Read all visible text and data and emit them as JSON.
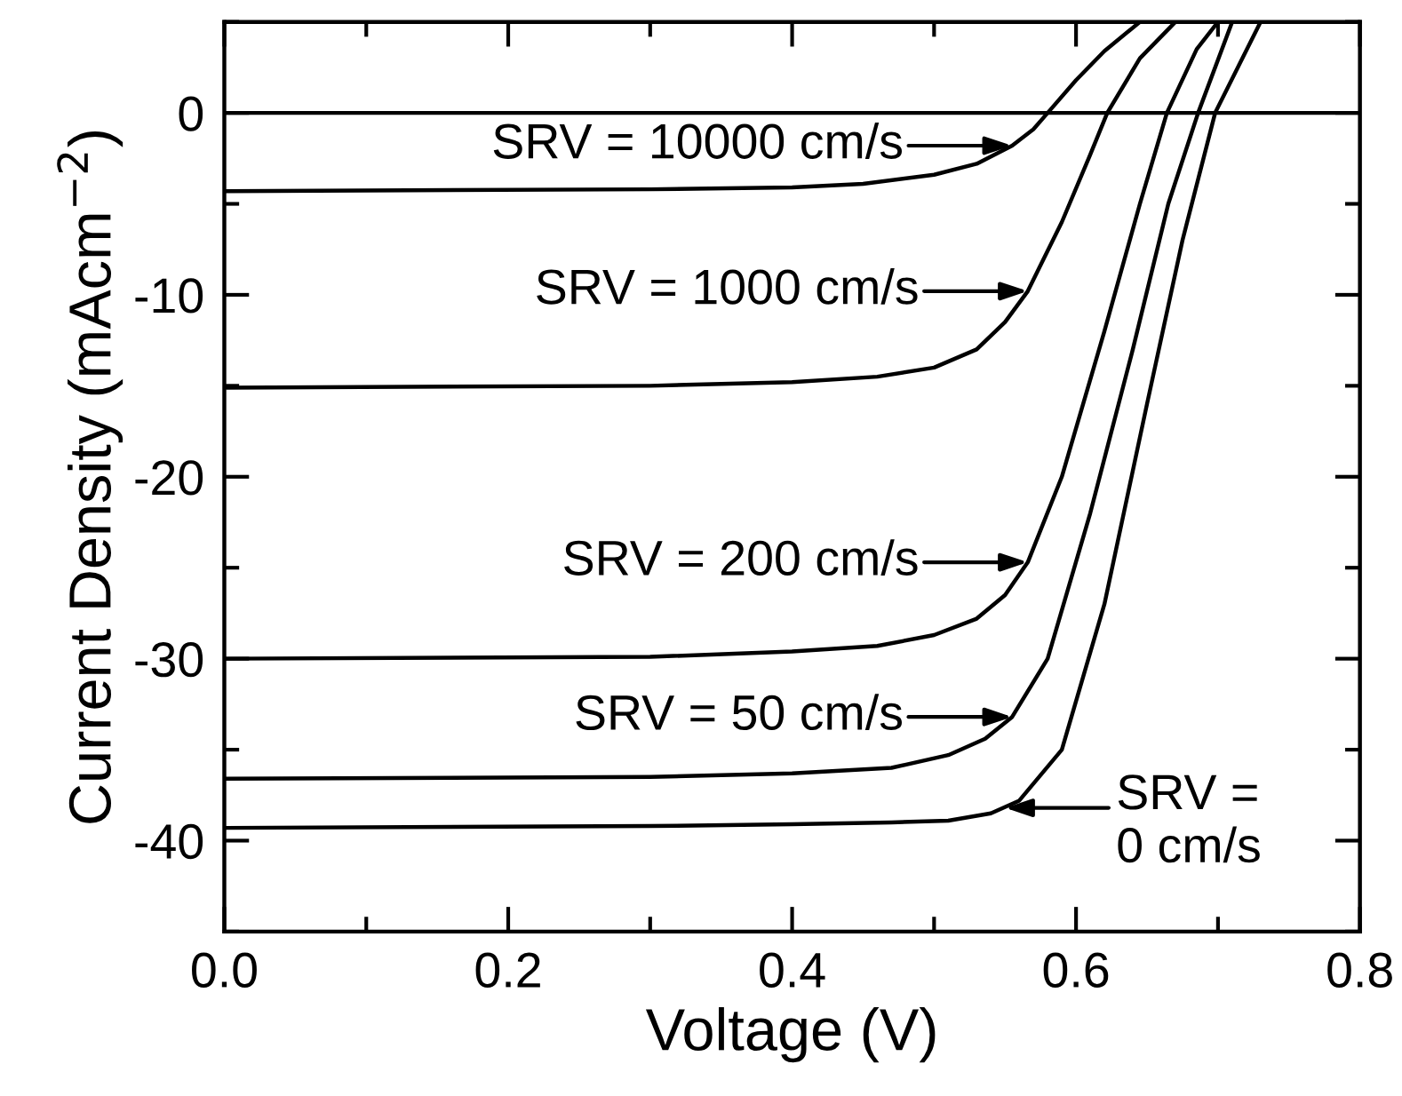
{
  "chart_data": {
    "type": "line",
    "xlabel": "Voltage (V)",
    "ylabel": "Current Density (mAcm$^{−2}$)",
    "xlim": [
      0,
      0.8
    ],
    "ylim": [
      -45,
      5
    ],
    "xticks": [
      {
        "value": 0.0,
        "label": "0.0"
      },
      {
        "value": 0.1,
        "label": null
      },
      {
        "value": 0.2,
        "label": "0.2"
      },
      {
        "value": 0.3,
        "label": null
      },
      {
        "value": 0.4,
        "label": "0.4"
      },
      {
        "value": 0.5,
        "label": null
      },
      {
        "value": 0.6,
        "label": "0.6"
      },
      {
        "value": 0.7,
        "label": null
      },
      {
        "value": 0.8,
        "label": "0.8"
      }
    ],
    "yticks": [
      {
        "value": -45,
        "label": null
      },
      -40,
      {
        "value": -35,
        "label": null
      },
      -30,
      {
        "value": -25,
        "label": null
      },
      -20,
      {
        "value": -15,
        "label": null
      },
      -10,
      {
        "value": -5,
        "label": null
      },
      0,
      {
        "value": 5,
        "label": null
      }
    ],
    "grid": false,
    "legend": false,
    "marker": "none",
    "line_style": "solid",
    "ref_lines": [
      {
        "axis": "y",
        "value": 0,
        "color": "#000000"
      }
    ],
    "series": [
      {
        "color": "#000000",
        "x": [
          0,
          0.3,
          0.4,
          0.45,
          0.5,
          0.53,
          0.555,
          0.57,
          0.58,
          0.6,
          0.62,
          0.645
        ],
        "values": [
          -4.3,
          -4.2,
          -4.1,
          -3.9,
          -3.4,
          -2.8,
          -1.8,
          -0.9,
          0,
          1.8,
          3.4,
          5
        ]
      },
      {
        "color": "#000000",
        "x": [
          0,
          0.3,
          0.4,
          0.46,
          0.5,
          0.53,
          0.55,
          0.566,
          0.59,
          0.61,
          0.622,
          0.645,
          0.67
        ],
        "values": [
          -15.1,
          -15,
          -14.8,
          -14.5,
          -14,
          -13,
          -11.5,
          -9.8,
          -6,
          -2.3,
          0,
          3,
          5
        ]
      },
      {
        "color": "#000000",
        "x": [
          0,
          0.3,
          0.4,
          0.46,
          0.5,
          0.53,
          0.55,
          0.566,
          0.59,
          0.62,
          0.645,
          0.664,
          0.685,
          0.7
        ],
        "values": [
          -30,
          -29.9,
          -29.6,
          -29.3,
          -28.7,
          -27.8,
          -26.5,
          -24.7,
          -20,
          -12,
          -5,
          0,
          3.5,
          5
        ]
      },
      {
        "color": "#000000",
        "x": [
          0,
          0.3,
          0.4,
          0.47,
          0.51,
          0.536,
          0.555,
          0.58,
          0.61,
          0.64,
          0.665,
          0.686,
          0.71
        ],
        "values": [
          -36.6,
          -36.5,
          -36.3,
          -36,
          -35.3,
          -34.4,
          -33.2,
          -30,
          -22,
          -13,
          -5,
          0,
          5
        ]
      },
      {
        "color": "#000000",
        "x": [
          0,
          0.3,
          0.4,
          0.47,
          0.51,
          0.54,
          0.56,
          0.59,
          0.62,
          0.65,
          0.675,
          0.698,
          0.73
        ],
        "values": [
          -39.3,
          -39.2,
          -39.1,
          -39,
          -38.9,
          -38.5,
          -37.8,
          -35,
          -27,
          -16,
          -7,
          0,
          5
        ]
      }
    ],
    "annotations": [
      {
        "text": "SRV = 10000 cm/s",
        "x": 0.555,
        "y": -1.8
      },
      {
        "text": "SRV = 1000 cm/s",
        "x": 0.566,
        "y": -9.8
      },
      {
        "text": "SRV = 200 cm/s",
        "x": 0.566,
        "y": -24.7
      },
      {
        "text": "SRV = 50 cm/s",
        "x": 0.555,
        "y": -33.2
      },
      {
        "text": "SRV =\n0 cm/s",
        "x": 0.55,
        "y": -38.2
      }
    ]
  }
}
